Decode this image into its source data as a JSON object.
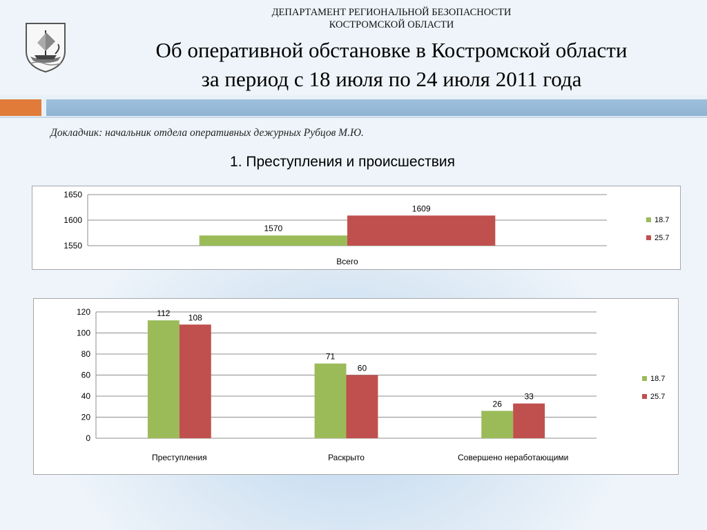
{
  "header": {
    "dept_line1": "ДЕПАРТАМЕНТ РЕГИОНАЛЬНОЙ БЕЗОПАСНОСТИ",
    "dept_line2": "КОСТРОМСКОЙ ОБЛАСТИ",
    "title_line1": "Об оперативной обстановке в Костромской области",
    "title_line2": "за период с 18 июля по 24 июля 2011 года",
    "emblem_icon": "kostroma-coat-of-arms-icon"
  },
  "speaker": "Докладчик: начальник отдела оперативных дежурных Рубцов М.Ю.",
  "section_title": "1. Преступления и происшествия",
  "colors": {
    "series_1": "#9bbb59",
    "series_2": "#c0504d",
    "accent_orange": "#e07b39",
    "band_blue": "#95b8d7"
  },
  "chart_data": [
    {
      "type": "bar",
      "categories": [
        "Всего"
      ],
      "series": [
        {
          "name": "18.7",
          "values": [
            1570
          ]
        },
        {
          "name": "25.7",
          "values": [
            1609
          ]
        }
      ],
      "ylim": [
        1550,
        1650
      ],
      "yticks": [
        1550,
        1600,
        1650
      ],
      "data_labels": true,
      "grid": true,
      "legend": "right"
    },
    {
      "type": "bar",
      "categories": [
        "Преступления",
        "Раскрыто",
        "Совершено неработающими"
      ],
      "series": [
        {
          "name": "18.7",
          "values": [
            112,
            71,
            26
          ]
        },
        {
          "name": "25.7",
          "values": [
            108,
            60,
            33
          ]
        }
      ],
      "ylim": [
        0,
        120
      ],
      "yticks": [
        0,
        20,
        40,
        60,
        80,
        100,
        120
      ],
      "data_labels": true,
      "grid": true,
      "legend": "right"
    }
  ]
}
